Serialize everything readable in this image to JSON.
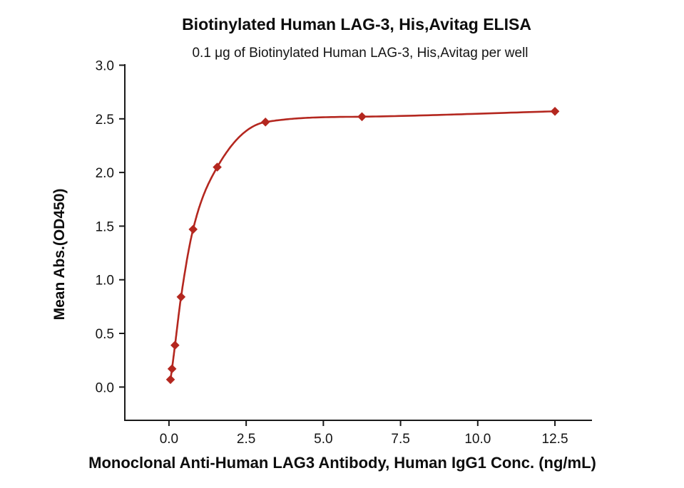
{
  "chart_data": {
    "type": "scatter",
    "title": "Biotinylated Human LAG-3, His,Avitag ELISA",
    "subtitle": "0.1 μg of Biotinylated Human LAG-3, His,Avitag per well",
    "xlabel": "Monoclonal Anti-Human LAG3 Antibody, Human IgG1 Conc. (ng/mL)",
    "ylabel": "Mean Abs.(OD450)",
    "x": [
      0.049,
      0.098,
      0.195,
      0.391,
      0.781,
      1.563,
      3.125,
      6.25,
      12.5
    ],
    "y": [
      0.07,
      0.17,
      0.39,
      0.84,
      1.47,
      2.05,
      2.47,
      2.52,
      2.57
    ],
    "xticks": [
      0.0,
      2.5,
      5.0,
      7.5,
      10.0,
      12.5
    ],
    "yticks": [
      0.0,
      0.5,
      1.0,
      1.5,
      2.0,
      2.5,
      3.0
    ],
    "xlim": [
      -1.43,
      13.7
    ],
    "ylim": [
      -0.31,
      3.01
    ],
    "marker": "diamond",
    "curve": "dose-response-fit",
    "color": "#b4271f",
    "grid": false,
    "legend": null
  }
}
